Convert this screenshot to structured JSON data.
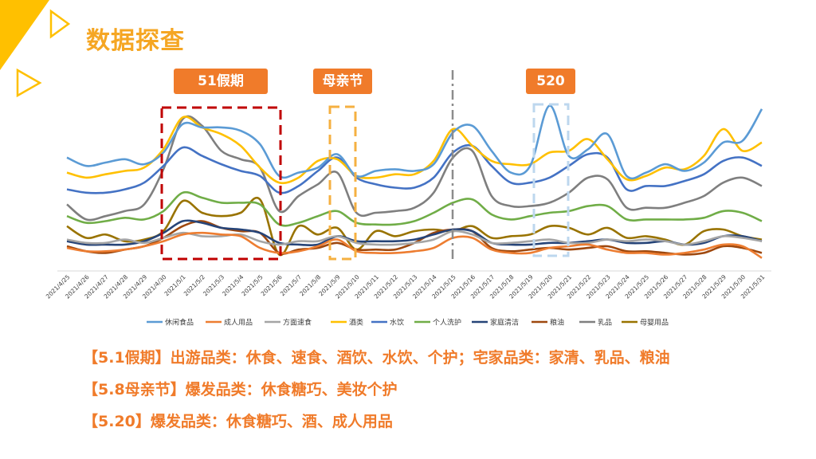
{
  "page": {
    "title": "数据探查"
  },
  "tags": {
    "may1": "51假期",
    "mothers_day": "母亲节",
    "day520": "520"
  },
  "chart_data": {
    "type": "line",
    "title": "",
    "xlabel": "",
    "ylabel": "",
    "ylim": [
      0,
      100
    ],
    "grid": false,
    "legend_position": "bottom",
    "categories": [
      "2021/4/25",
      "2021/4/26",
      "2021/4/27",
      "2021/4/28",
      "2021/4/29",
      "2021/4/30",
      "2021/5/1",
      "2021/5/2",
      "2021/5/3",
      "2021/5/4",
      "2021/5/5",
      "2021/5/6",
      "2021/5/7",
      "2021/5/8",
      "2021/5/9",
      "2021/5/10",
      "2021/5/11",
      "2021/5/12",
      "2021/5/13",
      "2021/5/14",
      "2021/5/15",
      "2021/5/16",
      "2021/5/17",
      "2021/5/18",
      "2021/5/19",
      "2021/5/20",
      "2021/5/21",
      "2021/5/22",
      "2021/5/23",
      "2021/5/24",
      "2021/5/25",
      "2021/5/26",
      "2021/5/27",
      "2021/5/28",
      "2021/5/29",
      "2021/5/30",
      "2021/5/31"
    ],
    "series": [
      {
        "name": "休闲食品",
        "color": "#5B9BD5",
        "values": [
          63,
          58,
          60,
          62,
          59,
          66,
          83,
          81,
          81,
          79,
          71,
          52,
          54,
          57,
          65,
          52,
          55,
          56,
          55,
          59,
          78,
          82,
          67,
          54,
          58,
          94,
          64,
          68,
          77,
          52,
          54,
          59,
          55,
          60,
          72,
          73,
          92
        ]
      },
      {
        "name": "成人用品",
        "color": "#ED7D31",
        "values": [
          9,
          7,
          7,
          8,
          10,
          13,
          17,
          18,
          17,
          16,
          9,
          6,
          7,
          10,
          14,
          7,
          6,
          6,
          7,
          9,
          15,
          15,
          8,
          6,
          6,
          9,
          10,
          11,
          8,
          6,
          6,
          5,
          6,
          8,
          11,
          10,
          3
        ]
      },
      {
        "name": "方面速食",
        "color": "#A5A5A5",
        "values": [
          14,
          12,
          12,
          14,
          12,
          15,
          18,
          16,
          16,
          17,
          13,
          11,
          13,
          13,
          16,
          12,
          11,
          11,
          12,
          14,
          19,
          17,
          12,
          12,
          13,
          14,
          12,
          12,
          14,
          13,
          14,
          13,
          11,
          13,
          16,
          15,
          13
        ]
      },
      {
        "name": "酒类",
        "color": "#FFC000",
        "values": [
          54,
          51,
          53,
          55,
          57,
          68,
          87,
          81,
          77,
          70,
          57,
          48,
          51,
          61,
          62,
          52,
          51,
          53,
          53,
          61,
          80,
          70,
          61,
          59,
          59,
          66,
          67,
          74,
          62,
          50,
          52,
          57,
          56,
          64,
          80,
          67,
          72
        ]
      },
      {
        "name": "水饮",
        "color": "#4472C4",
        "values": [
          44,
          42,
          42,
          44,
          48,
          58,
          69,
          64,
          59,
          55,
          52,
          42,
          46,
          55,
          63,
          51,
          47,
          45,
          45,
          51,
          66,
          70,
          58,
          48,
          48,
          51,
          58,
          65,
          63,
          44,
          46,
          46,
          49,
          53,
          61,
          63,
          58
        ]
      },
      {
        "name": "个人洗护",
        "color": "#70AD47",
        "values": [
          28,
          24,
          25,
          27,
          26,
          31,
          42,
          39,
          36,
          36,
          35,
          23,
          24,
          28,
          31,
          24,
          23,
          23,
          25,
          30,
          36,
          38,
          29,
          26,
          28,
          30,
          31,
          34,
          34,
          26,
          26,
          26,
          26,
          27,
          31,
          30,
          25
        ]
      },
      {
        "name": "家庭清洁",
        "color": "#264478",
        "values": [
          13,
          11,
          11,
          11,
          13,
          18,
          25,
          24,
          21,
          20,
          18,
          12,
          11,
          11,
          16,
          13,
          13,
          13,
          14,
          17,
          20,
          19,
          12,
          11,
          11,
          12,
          12,
          13,
          14,
          12,
          12,
          13,
          11,
          12,
          16,
          16,
          13
        ]
      },
      {
        "name": "粮油",
        "color": "#9E480E",
        "values": [
          10,
          7,
          6,
          8,
          10,
          15,
          22,
          25,
          21,
          19,
          18,
          6,
          8,
          9,
          12,
          8,
          8,
          8,
          12,
          18,
          20,
          19,
          9,
          7,
          8,
          9,
          8,
          9,
          10,
          7,
          7,
          6,
          5,
          6,
          10,
          9,
          6
        ]
      },
      {
        "name": "乳品",
        "color": "#7F7F7F",
        "values": [
          35,
          26,
          28,
          31,
          35,
          56,
          86,
          82,
          67,
          62,
          57,
          31,
          40,
          47,
          54,
          30,
          30,
          31,
          33,
          42,
          63,
          67,
          40,
          34,
          34,
          36,
          42,
          51,
          50,
          33,
          33,
          33,
          36,
          40,
          48,
          51,
          46
        ]
      },
      {
        "name": "母婴用品",
        "color": "#997300",
        "values": [
          22,
          15,
          17,
          13,
          14,
          19,
          37,
          30,
          28,
          30,
          38,
          5,
          22,
          17,
          21,
          8,
          19,
          16,
          19,
          20,
          19,
          22,
          15,
          16,
          17,
          22,
          21,
          17,
          21,
          15,
          16,
          14,
          11,
          19,
          20,
          16,
          14
        ]
      }
    ]
  },
  "notes": [
    "【5.1假期】出游品类：休食、速食、酒饮、水饮、个护；宅家品类：家清、乳品、粮油",
    "【5.8母亲节】爆发品类：休食糖巧、美妆个护",
    "【5.20】爆发品类：休食糖巧、酒、成人用品"
  ]
}
